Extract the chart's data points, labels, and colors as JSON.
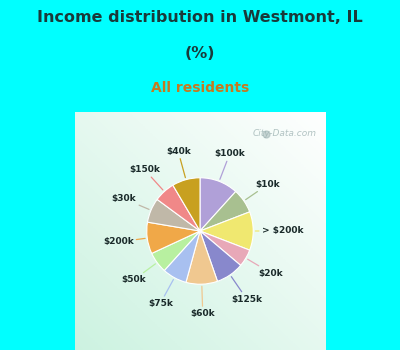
{
  "title_line1": "Income distribution in Westmont, IL",
  "title_line2": "(%)",
  "subtitle": "All residents",
  "title_color": "#1a3a3a",
  "subtitle_color": "#c47a20",
  "bg_top_color": "#00ffff",
  "chart_bg_color": "#e0f2e9",
  "watermark": "City-Data.com",
  "labels": [
    "$100k",
    "$10k",
    "> $200k",
    "$20k",
    "$125k",
    "$60k",
    "$75k",
    "$50k",
    "$200k",
    "$30k",
    "$150k",
    "$40k"
  ],
  "values": [
    11,
    7,
    11,
    5,
    8,
    9,
    7,
    6,
    9,
    7,
    6,
    8
  ],
  "colors": [
    "#b0a0d8",
    "#a8c090",
    "#f0e870",
    "#e8a8b8",
    "#8888cc",
    "#f0c890",
    "#a8c0f0",
    "#b8f0a0",
    "#f0a848",
    "#c0b8a8",
    "#f08888",
    "#c8a020"
  ],
  "figsize": [
    4.0,
    3.5
  ],
  "dpi": 100
}
